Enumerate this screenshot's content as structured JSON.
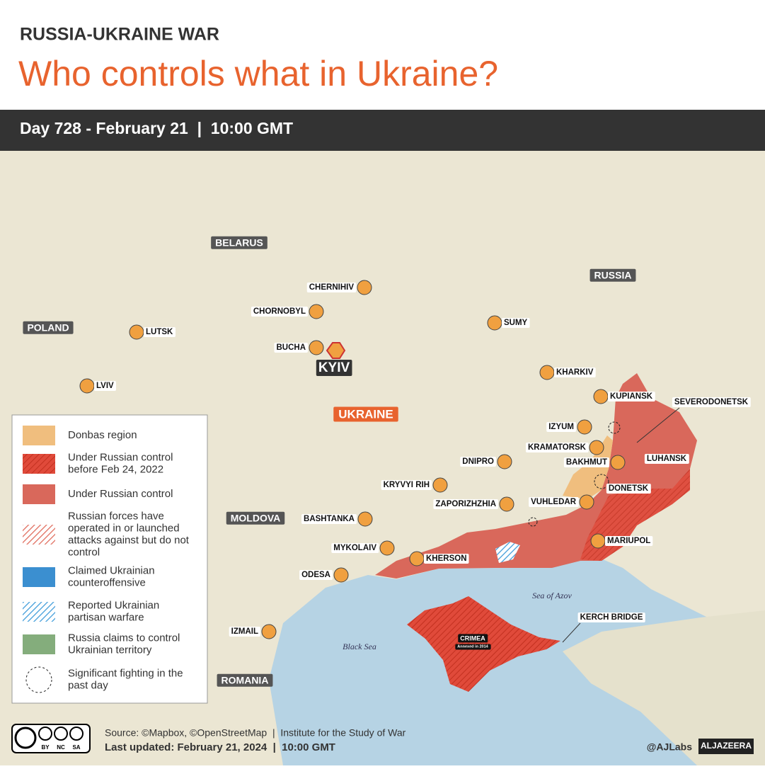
{
  "header": {
    "kicker": "RUSSIA-UKRAINE WAR",
    "title": "Who controls what in Ukraine?",
    "dateline": "Day 728 - February 21  |  10:00 GMT"
  },
  "map": {
    "countries": [
      "BELARUS",
      "RUSSIA",
      "POLAND",
      "MOLDOVA",
      "ROMANIA"
    ],
    "main_country": "UKRAINE",
    "capital": "KYIV",
    "cities": [
      "CHERNIHIV",
      "CHORNOBYL",
      "LUTSK",
      "BUCHA",
      "SUMY",
      "KHARKIV",
      "LVIV",
      "KUPIANSK",
      "IZYUM",
      "KRAMATORSK",
      "DNIPRO",
      "BAKHMUT",
      "KRYVYI RIH",
      "ZAPORIZHZHIA",
      "VUHLEDAR",
      "BASHTANKA",
      "MYKOLAIV",
      "MARIUPOL",
      "KHERSON",
      "ODESA",
      "IZMAIL"
    ],
    "callouts": [
      "SEVERODONETSK",
      "LUHANSK",
      "DONETSK",
      "KERCH BRIDGE"
    ],
    "seas": [
      "Sea of Azov",
      "Black Sea"
    ],
    "crimea": "CRIMEA",
    "crimea_note": "Annexed in 2014"
  },
  "legend": {
    "items": [
      "Donbas region",
      "Under Russian control before Feb 24, 2022",
      "Under Russian control",
      "Russian forces have operated in or launched attacks against but do not control",
      "Claimed Ukrainian counteroffensive",
      "Reported Ukrainian partisan warfare",
      "Russia claims to control Ukrainian territory",
      "Significant fighting in the past day"
    ]
  },
  "footer": {
    "source": "Source: ©Mapbox, ©OpenStreetMap  |  Institute for the Study of War",
    "updated": "Last updated: February 21, 2024  |  10:00 GMT",
    "credit": "@AJLabs",
    "brand": "ALJAZEERA",
    "cc": [
      "BY",
      "NC",
      "SA"
    ]
  }
}
